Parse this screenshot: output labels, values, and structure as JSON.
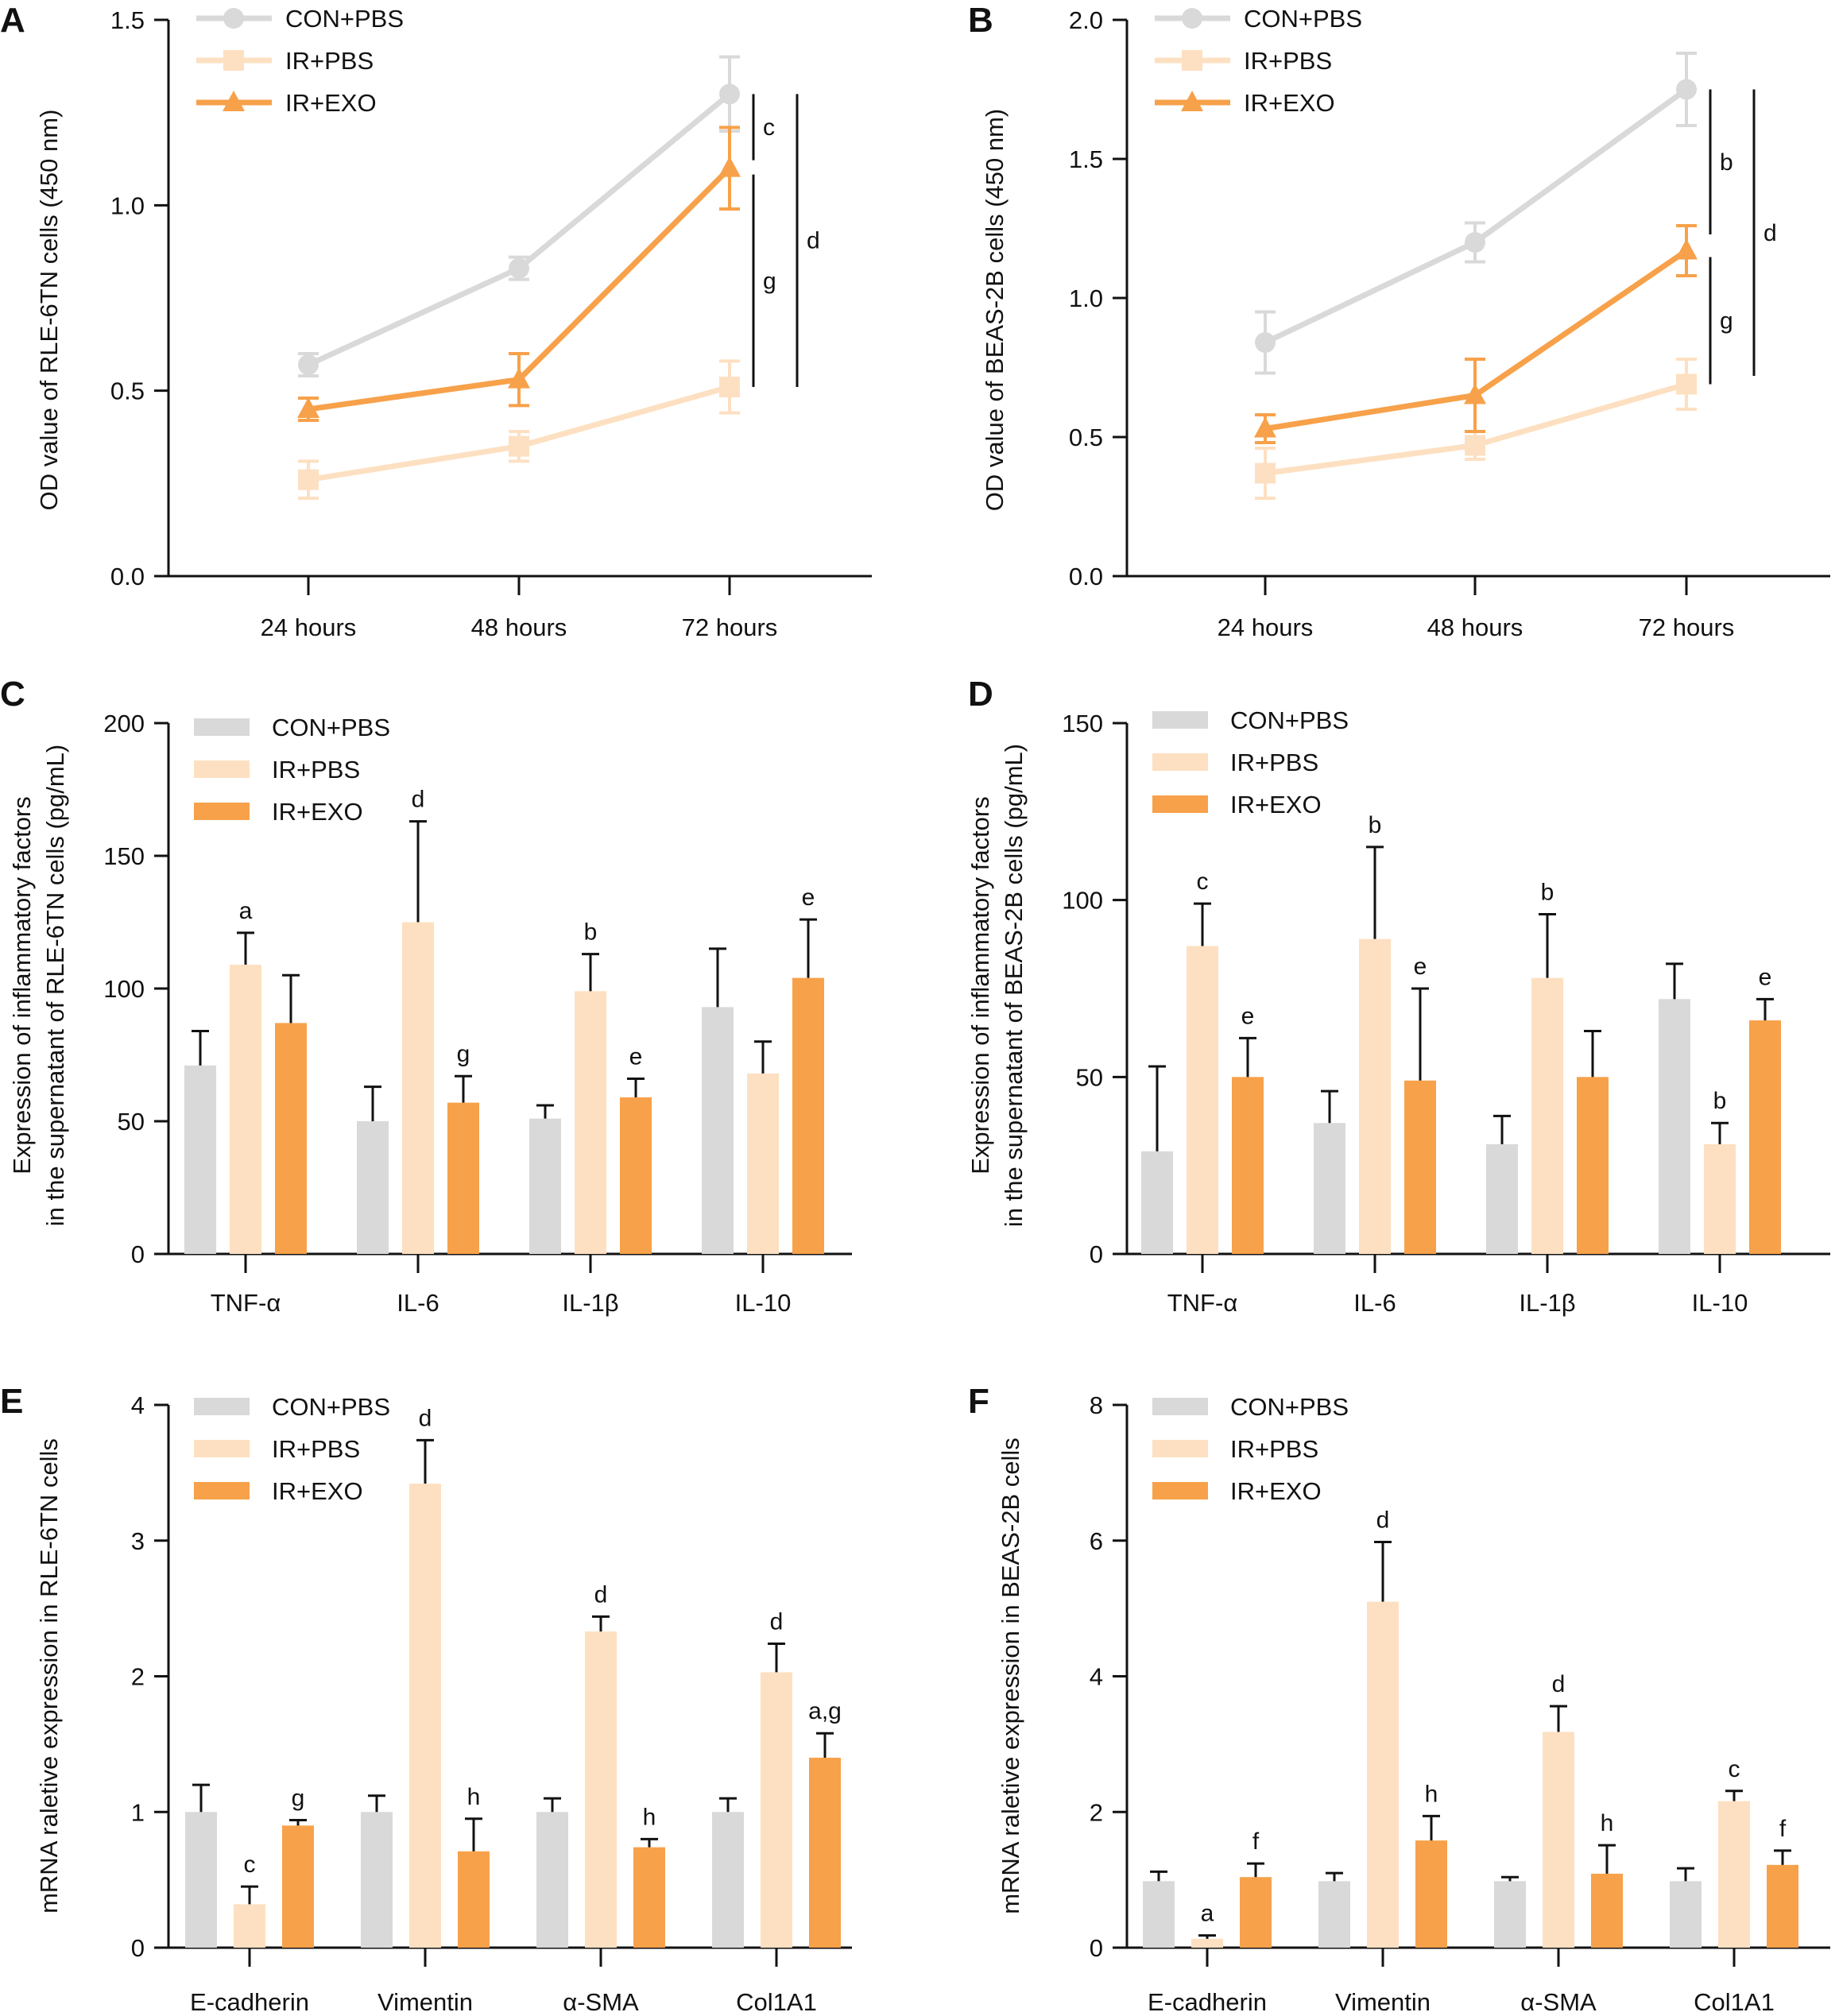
{
  "figure": {
    "colors": {
      "con_pbs": "#d9d9d9",
      "ir_pbs": "#fde0c1",
      "ir_exo": "#f7a14a",
      "axis": "#111111"
    }
  },
  "chart_data": [
    {
      "panel": "A",
      "type": "line",
      "ylabel": "OD value of RLE-6TN cells (450 nm)",
      "xlabel": "",
      "categories": [
        "24 hours",
        "48 hours",
        "72 hours"
      ],
      "ylim": [
        0,
        1.5
      ],
      "yticks": [
        0.0,
        0.5,
        1.0,
        1.5
      ],
      "ytick_labels": [
        "0.0",
        "0.5",
        "1.0",
        "1.5"
      ],
      "legend": [
        "CON+PBS",
        "IR+PBS",
        "IR+EXO"
      ],
      "legend_position": "top-left",
      "series": [
        {
          "name": "CON+PBS",
          "marker": "circle",
          "values": [
            0.57,
            0.83,
            1.3
          ],
          "errors": [
            0.03,
            0.03,
            0.1
          ]
        },
        {
          "name": "IR+PBS",
          "marker": "square",
          "values": [
            0.26,
            0.35,
            0.51
          ],
          "errors": [
            0.05,
            0.04,
            0.07
          ]
        },
        {
          "name": "IR+EXO",
          "marker": "triangle",
          "values": [
            0.45,
            0.53,
            1.1
          ],
          "errors": [
            0.03,
            0.07,
            0.11
          ]
        }
      ],
      "brackets": [
        {
          "label": "c",
          "from": 1.1,
          "to": 1.3,
          "column": 0
        },
        {
          "label": "g",
          "from": 0.51,
          "to": 1.1,
          "column": 0
        },
        {
          "label": "d",
          "from": 0.51,
          "to": 1.3,
          "column": 1
        }
      ]
    },
    {
      "panel": "B",
      "type": "line",
      "ylabel": "OD value of BEAS-2B cells (450 nm)",
      "xlabel": "",
      "categories": [
        "24 hours",
        "48 hours",
        "72 hours"
      ],
      "ylim": [
        0,
        2.0
      ],
      "yticks": [
        0.0,
        0.5,
        1.0,
        1.5,
        2.0
      ],
      "ytick_labels": [
        "0.0",
        "0.5",
        "1.0",
        "1.5",
        "2.0"
      ],
      "legend": [
        "CON+PBS",
        "IR+PBS",
        "IR+EXO"
      ],
      "legend_position": "top-left",
      "series": [
        {
          "name": "CON+PBS",
          "marker": "circle",
          "values": [
            0.84,
            1.2,
            1.75
          ],
          "errors": [
            0.11,
            0.07,
            0.13
          ]
        },
        {
          "name": "IR+PBS",
          "marker": "square",
          "values": [
            0.37,
            0.47,
            0.69
          ],
          "errors": [
            0.09,
            0.05,
            0.09
          ]
        },
        {
          "name": "IR+EXO",
          "marker": "triangle",
          "values": [
            0.53,
            0.65,
            1.17
          ],
          "errors": [
            0.05,
            0.13,
            0.09
          ]
        }
      ],
      "brackets": [
        {
          "label": "b",
          "from": 1.2,
          "to": 1.75,
          "column": 0
        },
        {
          "label": "g",
          "from": 0.69,
          "to": 1.17,
          "column": 0
        },
        {
          "label": "d",
          "from": 0.72,
          "to": 1.75,
          "column": 1
        }
      ]
    },
    {
      "panel": "C",
      "type": "bar",
      "ylabel": "Expression of inflammatory factors in the supernatant of RLE-6TN cells (pg/mL)",
      "ylabel_lines": [
        "Expression of inflammatory factors",
        "in the supernatant of RLE-6TN cells (pg/mL)"
      ],
      "xlabel": "",
      "categories": [
        "TNF-α",
        "IL-6",
        "IL-1β",
        "IL-10"
      ],
      "ylim": [
        0,
        200
      ],
      "yticks": [
        0,
        50,
        100,
        150,
        200
      ],
      "ytick_labels": [
        "0",
        "50",
        "100",
        "150",
        "200"
      ],
      "legend": [
        "CON+PBS",
        "IR+PBS",
        "IR+EXO"
      ],
      "legend_position": "top-left",
      "series": [
        {
          "name": "CON+PBS",
          "values": [
            71,
            50,
            51,
            93
          ],
          "errors": [
            13,
            13,
            5,
            22
          ],
          "annotations": [
            "",
            "",
            "",
            ""
          ]
        },
        {
          "name": "IR+PBS",
          "values": [
            109,
            125,
            99,
            68
          ],
          "errors": [
            12,
            38,
            14,
            12
          ],
          "annotations": [
            "a",
            "d",
            "b",
            ""
          ]
        },
        {
          "name": "IR+EXO",
          "values": [
            87,
            57,
            59,
            104
          ],
          "errors": [
            18,
            10,
            7,
            22
          ],
          "annotations": [
            "",
            "g",
            "e",
            "e"
          ]
        }
      ]
    },
    {
      "panel": "D",
      "type": "bar",
      "ylabel": "Expression of inflammatory factors in the supernatant of BEAS-2B cells (pg/mL)",
      "ylabel_lines": [
        "Expression of inflammatory factors",
        "in the supernatant of BEAS-2B cells (pg/mL)"
      ],
      "xlabel": "",
      "categories": [
        "TNF-α",
        "IL-6",
        "IL-1β",
        "IL-10"
      ],
      "ylim": [
        0,
        150
      ],
      "yticks": [
        0,
        50,
        100,
        150
      ],
      "ytick_labels": [
        "0",
        "50",
        "100",
        "150"
      ],
      "legend": [
        "CON+PBS",
        "IR+PBS",
        "IR+EXO"
      ],
      "legend_position": "top-left",
      "series": [
        {
          "name": "CON+PBS",
          "values": [
            29,
            37,
            31,
            72
          ],
          "errors": [
            24,
            9,
            8,
            10
          ],
          "annotations": [
            "",
            "",
            "",
            ""
          ]
        },
        {
          "name": "IR+PBS",
          "values": [
            87,
            89,
            78,
            31
          ],
          "errors": [
            12,
            26,
            18,
            6
          ],
          "annotations": [
            "c",
            "b",
            "b",
            "b"
          ]
        },
        {
          "name": "IR+EXO",
          "values": [
            50,
            49,
            50,
            66
          ],
          "errors": [
            11,
            26,
            13,
            6
          ],
          "annotations": [
            "e",
            "e",
            "",
            "e"
          ]
        }
      ]
    },
    {
      "panel": "E",
      "type": "bar",
      "ylabel": "mRNA raletive expression in RLE-6TN cells",
      "xlabel": "",
      "categories": [
        "E-cadherin",
        "Vimentin",
        "α-SMA",
        "Col1A1"
      ],
      "ylim": [
        0,
        4
      ],
      "yticks": [
        0,
        1,
        2,
        3,
        4
      ],
      "ytick_labels": [
        "0",
        "1",
        "2",
        "3",
        "4"
      ],
      "legend": [
        "CON+PBS",
        "IR+PBS",
        "IR+EXO"
      ],
      "legend_position": "top-left",
      "series": [
        {
          "name": "CON+PBS",
          "values": [
            1.0,
            1.0,
            1.0,
            1.0
          ],
          "errors": [
            0.2,
            0.12,
            0.1,
            0.1
          ],
          "annotations": [
            "",
            "",
            "",
            ""
          ]
        },
        {
          "name": "IR+PBS",
          "values": [
            0.32,
            3.42,
            2.33,
            2.03
          ],
          "errors": [
            0.13,
            0.32,
            0.11,
            0.21
          ],
          "annotations": [
            "c",
            "d",
            "d",
            "d"
          ]
        },
        {
          "name": "IR+EXO",
          "values": [
            0.9,
            0.71,
            0.74,
            1.4
          ],
          "errors": [
            0.04,
            0.24,
            0.06,
            0.18
          ],
          "annotations": [
            "g",
            "h",
            "h",
            "a,g"
          ]
        }
      ]
    },
    {
      "panel": "F",
      "type": "bar",
      "ylabel": "mRNA raletive expression in BEAS-2B cells",
      "xlabel": "",
      "categories": [
        "E-cadherin",
        "Vimentin",
        "α-SMA",
        "Col1A1"
      ],
      "ylim": [
        0,
        8
      ],
      "yticks": [
        0,
        2,
        4,
        6,
        8
      ],
      "ytick_labels": [
        "0",
        "2",
        "4",
        "6",
        "8"
      ],
      "legend": [
        "CON+PBS",
        "IR+PBS",
        "IR+EXO"
      ],
      "legend_position": "top-left",
      "series": [
        {
          "name": "CON+PBS",
          "values": [
            0.98,
            0.98,
            0.98,
            0.98
          ],
          "errors": [
            0.14,
            0.12,
            0.06,
            0.19
          ],
          "annotations": [
            "",
            "",
            "",
            ""
          ]
        },
        {
          "name": "IR+PBS",
          "values": [
            0.13,
            5.1,
            3.18,
            2.16
          ],
          "errors": [
            0.05,
            0.88,
            0.38,
            0.15
          ],
          "annotations": [
            "a",
            "d",
            "d",
            "c"
          ]
        },
        {
          "name": "IR+EXO",
          "values": [
            1.04,
            1.58,
            1.09,
            1.22
          ],
          "errors": [
            0.2,
            0.36,
            0.42,
            0.21
          ],
          "annotations": [
            "f",
            "h",
            "h",
            "f"
          ]
        }
      ]
    }
  ]
}
